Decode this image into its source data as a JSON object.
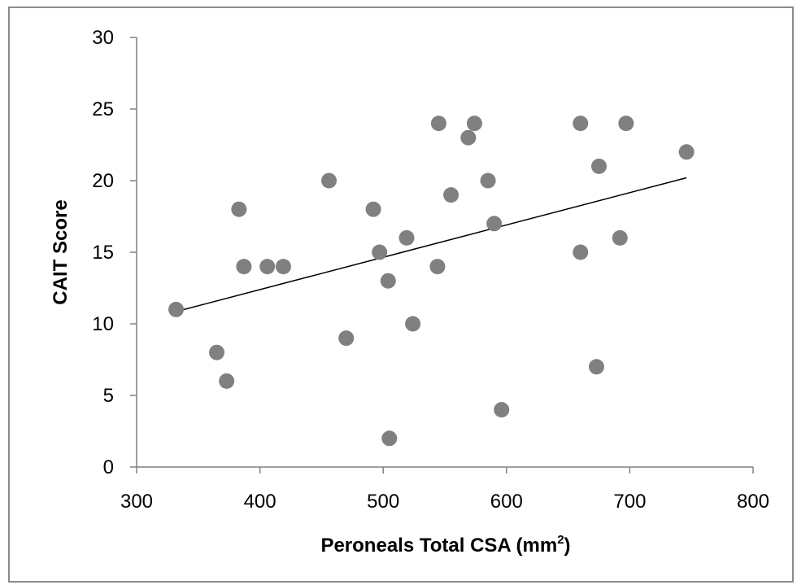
{
  "chart_data": {
    "type": "scatter",
    "title": "",
    "xlabel": "Peroneals Total CSA (mm",
    "xlabel_superscript": "2",
    "xlabel_suffix": ")",
    "ylabel": "CAIT Score",
    "xlim": [
      300,
      800
    ],
    "ylim": [
      0,
      30
    ],
    "x_ticks": [
      300,
      400,
      500,
      600,
      700,
      800
    ],
    "y_ticks": [
      0,
      5,
      10,
      15,
      20,
      25,
      30
    ],
    "grid": false,
    "legend": "none",
    "marker_color": "#808080",
    "trendline_color": "#000000",
    "points": [
      {
        "x": 332,
        "y": 11
      },
      {
        "x": 365,
        "y": 8
      },
      {
        "x": 373,
        "y": 6
      },
      {
        "x": 383,
        "y": 18
      },
      {
        "x": 387,
        "y": 14
      },
      {
        "x": 406,
        "y": 14
      },
      {
        "x": 419,
        "y": 14
      },
      {
        "x": 456,
        "y": 20
      },
      {
        "x": 470,
        "y": 9
      },
      {
        "x": 492,
        "y": 18
      },
      {
        "x": 497,
        "y": 15
      },
      {
        "x": 504,
        "y": 13
      },
      {
        "x": 505,
        "y": 2
      },
      {
        "x": 519,
        "y": 16
      },
      {
        "x": 524,
        "y": 10
      },
      {
        "x": 544,
        "y": 14
      },
      {
        "x": 545,
        "y": 24
      },
      {
        "x": 555,
        "y": 19
      },
      {
        "x": 569,
        "y": 23
      },
      {
        "x": 574,
        "y": 24
      },
      {
        "x": 585,
        "y": 20
      },
      {
        "x": 590,
        "y": 17
      },
      {
        "x": 596,
        "y": 4
      },
      {
        "x": 660,
        "y": 24
      },
      {
        "x": 660,
        "y": 15
      },
      {
        "x": 673,
        "y": 7
      },
      {
        "x": 675,
        "y": 21
      },
      {
        "x": 692,
        "y": 16
      },
      {
        "x": 697,
        "y": 24
      },
      {
        "x": 746,
        "y": 22
      }
    ],
    "trendline": {
      "x": [
        334,
        746
      ],
      "y": [
        10.9,
        20.2
      ]
    }
  }
}
